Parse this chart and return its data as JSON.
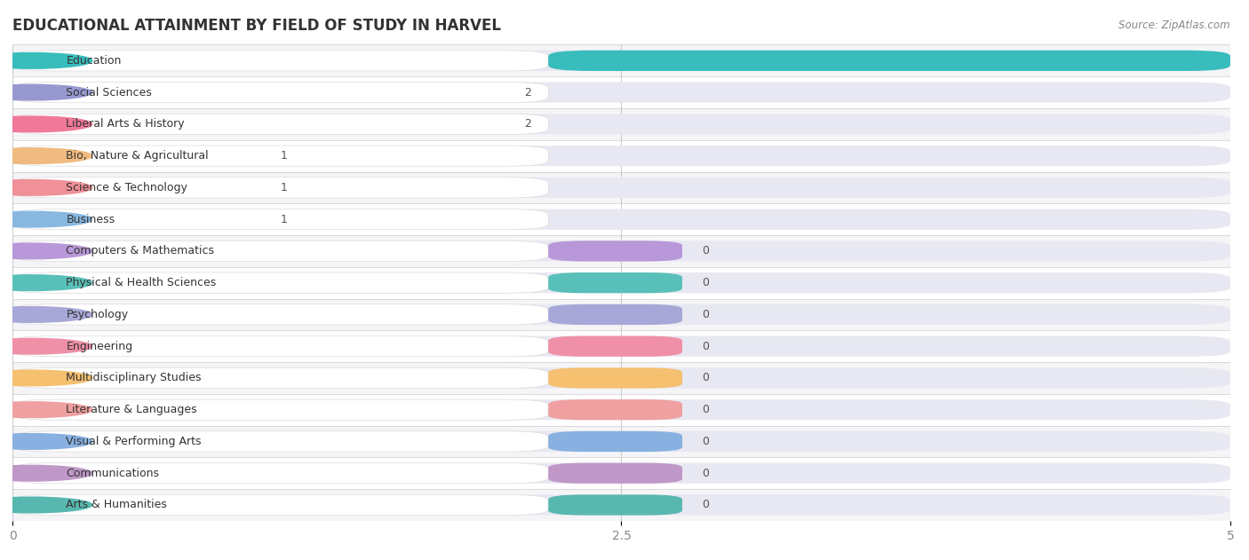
{
  "title": "EDUCATIONAL ATTAINMENT BY FIELD OF STUDY IN HARVEL",
  "source": "Source: ZipAtlas.com",
  "categories": [
    "Education",
    "Social Sciences",
    "Liberal Arts & History",
    "Bio, Nature & Agricultural",
    "Science & Technology",
    "Business",
    "Computers & Mathematics",
    "Physical & Health Sciences",
    "Psychology",
    "Engineering",
    "Multidisciplinary Studies",
    "Literature & Languages",
    "Visual & Performing Arts",
    "Communications",
    "Arts & Humanities"
  ],
  "values": [
    5,
    2,
    2,
    1,
    1,
    1,
    0,
    0,
    0,
    0,
    0,
    0,
    0,
    0,
    0
  ],
  "bar_colors": [
    "#38BCBC",
    "#9898D0",
    "#F07898",
    "#F0BB80",
    "#F09098",
    "#88B8E0",
    "#B898D8",
    "#58C0B8",
    "#A8A8D8",
    "#F090A8",
    "#F5C070",
    "#F0A0A0",
    "#88B0E0",
    "#C098C8",
    "#58B8B0"
  ],
  "xlim": [
    0,
    5
  ],
  "xticks": [
    0,
    2.5,
    5
  ],
  "background_color": "#ffffff",
  "row_bg_light": "#f5f5f8",
  "row_bg_dark": "#ebebf0",
  "bar_bg_color": "#e8e8f2",
  "bar_height": 0.65,
  "label_fontsize": 9.0,
  "title_fontsize": 12,
  "value_label_color": "#555555",
  "zero_bar_width": 0.55
}
